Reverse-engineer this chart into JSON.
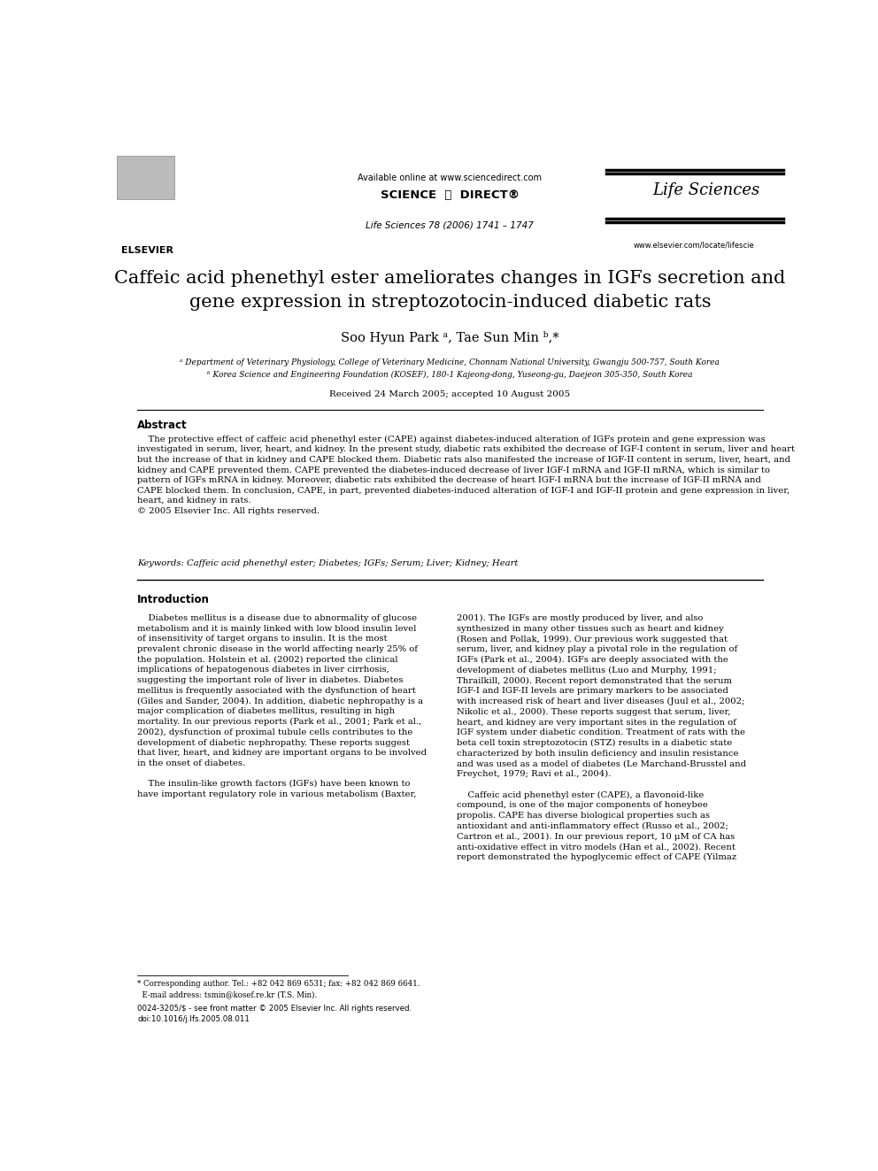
{
  "bg_color": "#ffffff",
  "available_online": "Available online at www.sciencedirect.com",
  "science_direct": "SCIENCE  ⓓ  DIRECT®",
  "journal_name": "Life Sciences",
  "journal_info": "Life Sciences 78 (2006) 1741 – 1747",
  "journal_url": "www.elsevier.com/locate/lifescie",
  "elsevier_text": "ELSEVIER",
  "title": "Caffeic acid phenethyl ester ameliorates changes in IGFs secretion and\ngene expression in streptozotocin-induced diabetic rats",
  "authors": "Soo Hyun Park ᵃ, Tae Sun Min ᵇ,*",
  "affiliations": [
    "ᵃ Department of Veterinary Physiology, College of Veterinary Medicine, Chonnam National University, Gwangju 500-757, South Korea",
    "ᵇ Korea Science and Engineering Foundation (KOSEF), 180-1 Kajeong-dong, Yuseong-gu, Daejeon 305-350, South Korea"
  ],
  "received": "Received 24 March 2005; accepted 10 August 2005",
  "abstract_title": "Abstract",
  "abstract_text": "    The protective effect of caffeic acid phenethyl ester (CAPE) against diabetes-induced alteration of IGFs protein and gene expression was\ninvestigated in serum, liver, heart, and kidney. In the present study, diabetic rats exhibited the decrease of IGF-I content in serum, liver and heart\nbut the increase of that in kidney and CAPE blocked them. Diabetic rats also manifested the increase of IGF-II content in serum, liver, heart, and\nkidney and CAPE prevented them. CAPE prevented the diabetes-induced decrease of liver IGF-I mRNA and IGF-II mRNA, which is similar to\npattern of IGFs mRNA in kidney. Moreover, diabetic rats exhibited the decrease of heart IGF-I mRNA but the increase of IGF-II mRNA and\nCAPE blocked them. In conclusion, CAPE, in part, prevented diabetes-induced alteration of IGF-I and IGF-II protein and gene expression in liver,\nheart, and kidney in rats.\n© 2005 Elsevier Inc. All rights reserved.",
  "keywords": "Keywords: Caffeic acid phenethyl ester; Diabetes; IGFs; Serum; Liver; Kidney; Heart",
  "intro_title": "Introduction",
  "intro_left": "    Diabetes mellitus is a disease due to abnormality of glucose\nmetabolism and it is mainly linked with low blood insulin level\nof insensitivity of target organs to insulin. It is the most\nprevalent chronic disease in the world affecting nearly 25% of\nthe population. Holstein et al. (2002) reported the clinical\nimplications of hepatogenous diabetes in liver cirrhosis,\nsuggesting the important role of liver in diabetes. Diabetes\nmellitus is frequently associated with the dysfunction of heart\n(Giles and Sander, 2004). In addition, diabetic nephropathy is a\nmajor complication of diabetes mellitus, resulting in high\nmortality. In our previous reports (Park et al., 2001; Park et al.,\n2002), dysfunction of proximal tubule cells contributes to the\ndevelopment of diabetic nephropathy. These reports suggest\nthat liver, heart, and kidney are important organs to be involved\nin the onset of diabetes.\n\n    The insulin-like growth factors (IGFs) have been known to\nhave important regulatory role in various metabolism (Baxter,",
  "intro_right": "2001). The IGFs are mostly produced by liver, and also\nsynthesized in many other tissues such as heart and kidney\n(Rosen and Pollak, 1999). Our previous work suggested that\nserum, liver, and kidney play a pivotal role in the regulation of\nIGFs (Park et al., 2004). IGFs are deeply associated with the\ndevelopment of diabetes mellitus (Luo and Murphy, 1991;\nThrailkill, 2000). Recent report demonstrated that the serum\nIGF-I and IGF-II levels are primary markers to be associated\nwith increased risk of heart and liver diseases (Juul et al., 2002;\nNikolic et al., 2000). These reports suggest that serum, liver,\nheart, and kidney are very important sites in the regulation of\nIGF system under diabetic condition. Treatment of rats with the\nbeta cell toxin streptozotocin (STZ) results in a diabetic state\ncharacterized by both insulin deficiency and insulin resistance\nand was used as a model of diabetes (Le Marchand-Brusstel and\nFreychet, 1979; Ravi et al., 2004).\n\n    Caffeic acid phenethyl ester (CAPE), a flavonoid-like\ncompound, is one of the major components of honeybee\npropolis. CAPE has diverse biological properties such as\nantioxidant and anti-inflammatory effect (Russo et al., 2002;\nCartron et al., 2001). In our previous report, 10 μM of CA has\nanti-oxidative effect in vitro models (Han et al., 2002). Recent\nreport demonstrated the hypoglycemic effect of CAPE (Yilmaz",
  "footnote_star": "* Corresponding author. Tel.: +82 042 869 6531; fax: +82 042 869 6641.\n  E-mail address: tsmin@kosef.re.kr (T.S. Min).",
  "footnote_bottom": "0024-3205/$ - see front matter © 2005 Elsevier Inc. All rights reserved.\ndoi:10.1016/j.lfs.2005.08.011",
  "link_color": "#0000CC",
  "text_color": "#000000",
  "title_font_size": 15,
  "body_font_size": 7.5,
  "small_font_size": 6.5
}
